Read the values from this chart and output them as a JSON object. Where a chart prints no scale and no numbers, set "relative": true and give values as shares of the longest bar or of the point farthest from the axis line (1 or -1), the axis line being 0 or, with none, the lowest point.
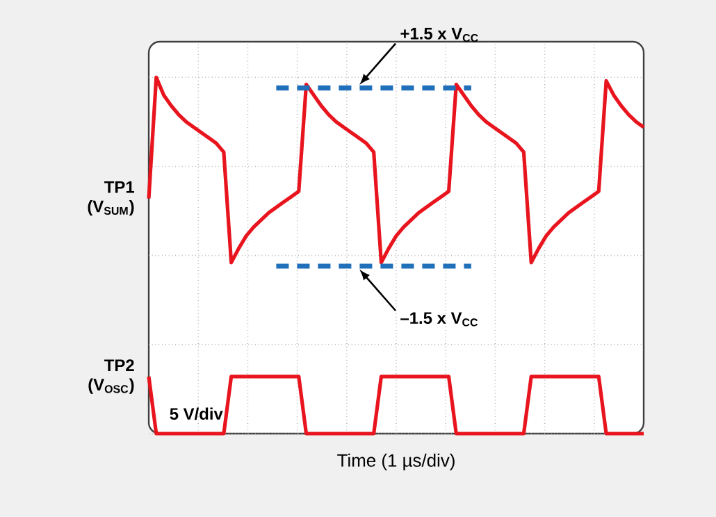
{
  "chart_data": {
    "type": "line",
    "relative": true,
    "xlabel": "Time (1 µs/div)",
    "categories": [
      null,
      null,
      null,
      null,
      null,
      null,
      null,
      null,
      null,
      null,
      null,
      null,
      null,
      null,
      null,
      null,
      null,
      null,
      null,
      null,
      null,
      null,
      null,
      null,
      null,
      null,
      null,
      null,
      null,
      null,
      null,
      null,
      null,
      null,
      null,
      null,
      null,
      null,
      null,
      null,
      null,
      null,
      null,
      null,
      null,
      null,
      null,
      null,
      null,
      null,
      null,
      null,
      null,
      null,
      null,
      null,
      null,
      null,
      null,
      null,
      null,
      null,
      null,
      null,
      null,
      null,
      null
    ],
    "grid": true,
    "marker": "none",
    "series": [
      {
        "name": "TP1 (V$_{SUM}$)",
        "color": "#e8141e",
        "values": [
          0.66,
          1.0,
          0.95,
          0.92,
          0.895,
          0.875,
          0.86,
          0.845,
          0.83,
          0.815,
          0.79,
          0.48,
          0.52,
          0.555,
          0.58,
          0.6,
          0.62,
          0.635,
          0.65,
          0.665,
          0.68,
          0.98,
          0.95,
          0.92,
          0.895,
          0.875,
          0.86,
          0.845,
          0.83,
          0.815,
          0.79,
          0.48,
          0.52,
          0.555,
          0.58,
          0.6,
          0.62,
          0.635,
          0.65,
          0.665,
          0.68,
          0.98,
          0.95,
          0.92,
          0.895,
          0.875,
          0.86,
          0.845,
          0.83,
          0.815,
          0.79,
          0.48,
          0.52,
          0.555,
          0.58,
          0.6,
          0.62,
          0.635,
          0.65,
          0.665,
          0.68,
          0.99,
          0.95,
          0.92,
          0.895,
          0.875,
          0.86
        ]
      },
      {
        "name": "TP2 (V$_{OSC}$)",
        "color": "#e8141e",
        "values": [
          0.16,
          0,
          0,
          0,
          0,
          0,
          0,
          0,
          0,
          0,
          0,
          0.16,
          0.16,
          0.16,
          0.16,
          0.16,
          0.16,
          0.16,
          0.16,
          0.16,
          0.16,
          0,
          0,
          0,
          0,
          0,
          0,
          0,
          0,
          0,
          0,
          0.16,
          0.16,
          0.16,
          0.16,
          0.16,
          0.16,
          0.16,
          0.16,
          0.16,
          0.16,
          0,
          0,
          0,
          0,
          0,
          0,
          0,
          0,
          0,
          0,
          0.16,
          0.16,
          0.16,
          0.16,
          0.16,
          0.16,
          0.16,
          0.16,
          0.16,
          0.16,
          0,
          0,
          0,
          0,
          0,
          0
        ]
      },
      {
        "color": "#1f6fba",
        "line_style": "dashed",
        "values": [
          null,
          null,
          null,
          null,
          null,
          null,
          null,
          null,
          null,
          null,
          null,
          null,
          null,
          null,
          null,
          null,
          null,
          0.97,
          0.97,
          0.97,
          0.97,
          0.97,
          0.97,
          0.97,
          0.97,
          0.97,
          0.97,
          0.97,
          0.97,
          0.97,
          0.97,
          0.97,
          0.97,
          0.97,
          0.97,
          0.97,
          0.97,
          0.97,
          0.97,
          0.97,
          0.97,
          0.97,
          0.97,
          0.97,
          null,
          null,
          null,
          null,
          null,
          null,
          null,
          null,
          null,
          null,
          null,
          null,
          null,
          null,
          null,
          null,
          null,
          null,
          null,
          null,
          null,
          null,
          null
        ]
      },
      {
        "color": "#1f6fba",
        "line_style": "dashed",
        "values": [
          null,
          null,
          null,
          null,
          null,
          null,
          null,
          null,
          null,
          null,
          null,
          null,
          null,
          null,
          null,
          null,
          null,
          0.47,
          0.47,
          0.47,
          0.47,
          0.47,
          0.47,
          0.47,
          0.47,
          0.47,
          0.47,
          0.47,
          0.47,
          0.47,
          0.47,
          0.47,
          0.47,
          0.47,
          0.47,
          0.47,
          0.47,
          0.47,
          0.47,
          0.47,
          0.47,
          0.47,
          0.47,
          0.47,
          null,
          null,
          null,
          null,
          null,
          null,
          null,
          null,
          null,
          null,
          null,
          null,
          null,
          null,
          null,
          null,
          null,
          null,
          null,
          null,
          null,
          null,
          null
        ]
      }
    ],
    "annotations": [
      {
        "text": "+1.5 x V$_{CC}$",
        "y": 0.97
      },
      {
        "text": "–1.5 x V$_{CC}$",
        "y": 0.47
      },
      "5 V/div"
    ]
  }
}
